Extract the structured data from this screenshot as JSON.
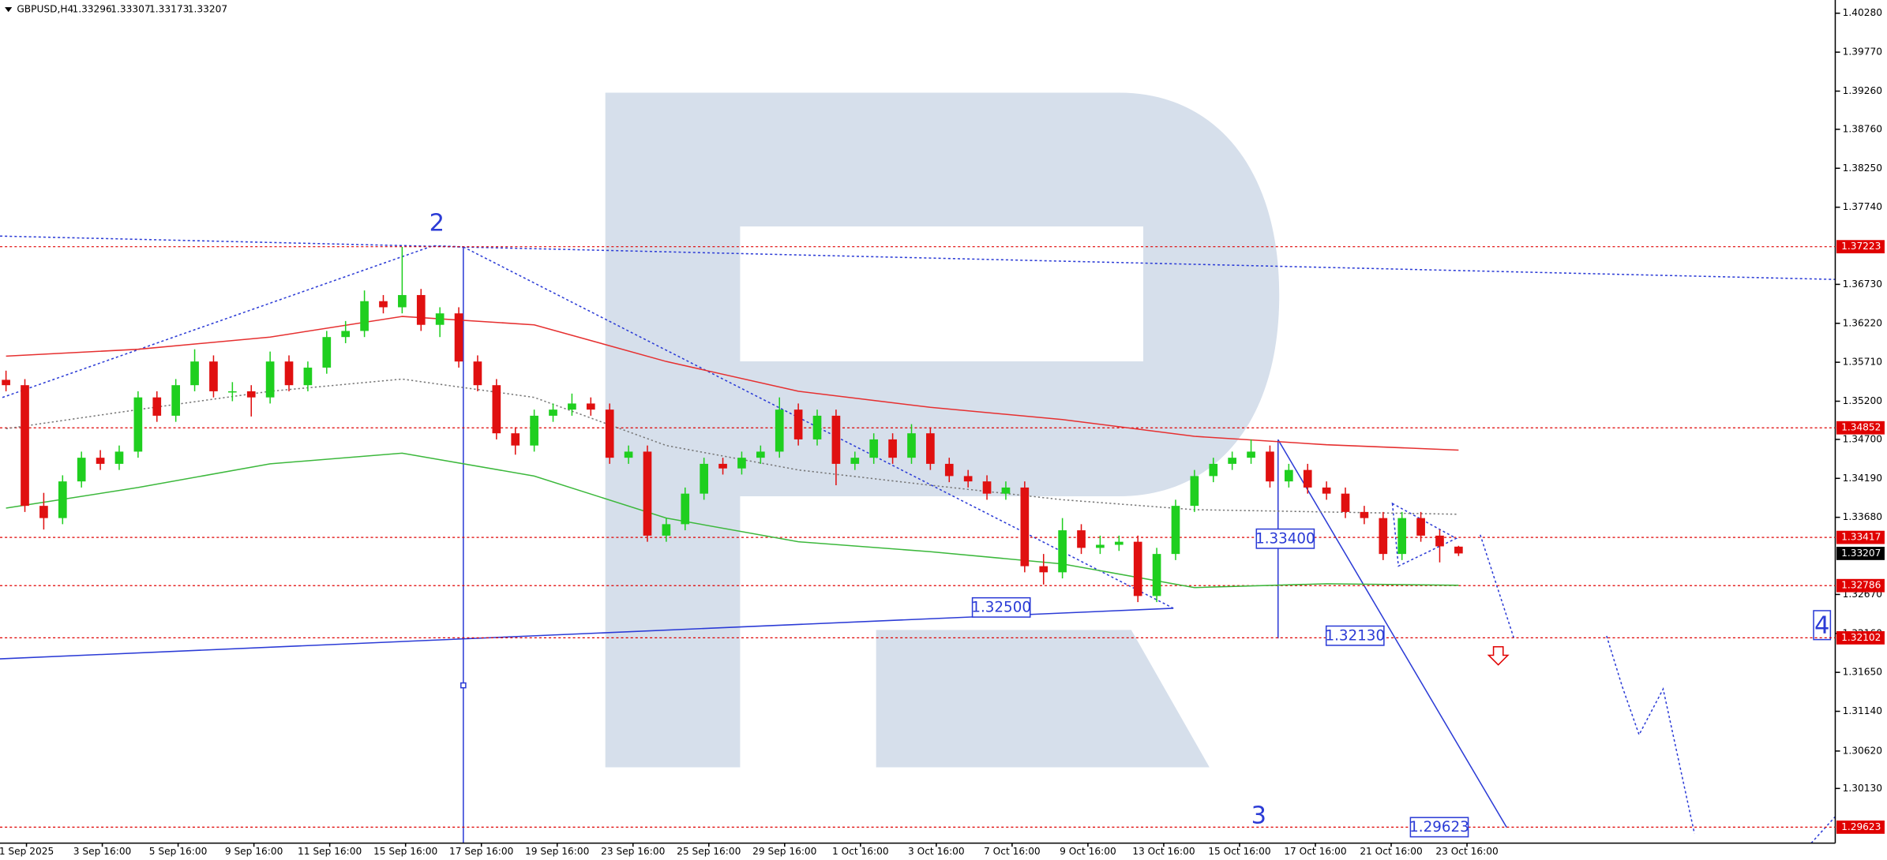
{
  "chart_data": {
    "type": "candlestick",
    "title": "GBPUSD,H4",
    "header_values": [
      1.33296,
      1.33307,
      1.33173,
      1.33207
    ],
    "categories": [
      "1 Sep 2025",
      "3 Sep 16:00",
      "5 Sep 16:00",
      "9 Sep 16:00",
      "11 Sep 16:00",
      "15 Sep 16:00",
      "17 Sep 16:00",
      "19 Sep 16:00",
      "23 Sep 16:00",
      "25 Sep 16:00",
      "29 Sep 16:00",
      "1 Oct 16:00",
      "3 Oct 16:00",
      "7 Oct 16:00",
      "9 Oct 16:00",
      "13 Oct 16:00",
      "15 Oct 16:00",
      "17 Oct 16:00",
      "21 Oct 16:00",
      "23 Oct 16:00"
    ],
    "candles": [
      [
        1.3548,
        1.356,
        1.3533,
        1.3541
      ],
      [
        1.3541,
        1.3549,
        1.3375,
        1.3383
      ],
      [
        1.3383,
        1.34,
        1.3352,
        1.3367
      ],
      [
        1.3367,
        1.3423,
        1.3359,
        1.3415
      ],
      [
        1.3415,
        1.3454,
        1.3407,
        1.3446
      ],
      [
        1.3446,
        1.3456,
        1.343,
        1.3438
      ],
      [
        1.3438,
        1.3462,
        1.343,
        1.3454
      ],
      [
        1.3454,
        1.3533,
        1.3446,
        1.3525
      ],
      [
        1.3525,
        1.3533,
        1.3493,
        1.3501
      ],
      [
        1.3501,
        1.3549,
        1.3493,
        1.3541
      ],
      [
        1.3541,
        1.3588,
        1.3533,
        1.3572
      ],
      [
        1.3572,
        1.358,
        1.3525,
        1.3533
      ],
      [
        1.3533,
        1.3545,
        1.352,
        1.3533
      ],
      [
        1.3533,
        1.3541,
        1.35,
        1.3525
      ],
      [
        1.3525,
        1.3585,
        1.3517,
        1.3572
      ],
      [
        1.3572,
        1.358,
        1.3533,
        1.3541
      ],
      [
        1.3541,
        1.3572,
        1.3533,
        1.3564
      ],
      [
        1.3564,
        1.3612,
        1.3556,
        1.3604
      ],
      [
        1.3604,
        1.3625,
        1.3596,
        1.3612
      ],
      [
        1.3612,
        1.3665,
        1.3604,
        1.3651
      ],
      [
        1.3651,
        1.3659,
        1.3635,
        1.3643
      ],
      [
        1.3643,
        1.3722,
        1.3635,
        1.3659
      ],
      [
        1.3659,
        1.3667,
        1.3612,
        1.362
      ],
      [
        1.362,
        1.3643,
        1.3604,
        1.3635
      ],
      [
        1.3635,
        1.3643,
        1.3564,
        1.3572
      ],
      [
        1.3572,
        1.358,
        1.3533,
        1.3541
      ],
      [
        1.3541,
        1.3549,
        1.347,
        1.3478
      ],
      [
        1.3478,
        1.3486,
        1.345,
        1.3462
      ],
      [
        1.3462,
        1.3509,
        1.3454,
        1.3501
      ],
      [
        1.3501,
        1.3517,
        1.3493,
        1.3509
      ],
      [
        1.3509,
        1.353,
        1.3501,
        1.3517
      ],
      [
        1.3517,
        1.3525,
        1.3501,
        1.3509
      ],
      [
        1.3509,
        1.3517,
        1.3438,
        1.3446
      ],
      [
        1.3446,
        1.3462,
        1.3438,
        1.3454
      ],
      [
        1.3454,
        1.3462,
        1.3336,
        1.3344
      ],
      [
        1.3344,
        1.3367,
        1.3336,
        1.3359
      ],
      [
        1.3359,
        1.3407,
        1.3351,
        1.3399
      ],
      [
        1.3399,
        1.3446,
        1.3391,
        1.3438
      ],
      [
        1.3438,
        1.3446,
        1.3424,
        1.3432
      ],
      [
        1.3432,
        1.3454,
        1.3424,
        1.3446
      ],
      [
        1.3446,
        1.3462,
        1.3438,
        1.3454
      ],
      [
        1.3454,
        1.3525,
        1.3446,
        1.3509
      ],
      [
        1.3509,
        1.3517,
        1.3462,
        1.347
      ],
      [
        1.347,
        1.3509,
        1.3462,
        1.3501
      ],
      [
        1.3501,
        1.3509,
        1.341,
        1.3438
      ],
      [
        1.3438,
        1.3454,
        1.343,
        1.3446
      ],
      [
        1.3446,
        1.3478,
        1.3438,
        1.347
      ],
      [
        1.347,
        1.3478,
        1.3438,
        1.3446
      ],
      [
        1.3446,
        1.349,
        1.3438,
        1.3478
      ],
      [
        1.3478,
        1.3486,
        1.343,
        1.3438
      ],
      [
        1.3438,
        1.3446,
        1.3414,
        1.3422
      ],
      [
        1.3422,
        1.343,
        1.3407,
        1.3415
      ],
      [
        1.3415,
        1.3423,
        1.3391,
        1.3399
      ],
      [
        1.3399,
        1.3415,
        1.3391,
        1.3407
      ],
      [
        1.3407,
        1.3415,
        1.3296,
        1.3304
      ],
      [
        1.3304,
        1.332,
        1.328,
        1.3296
      ],
      [
        1.3296,
        1.3367,
        1.3288,
        1.3351
      ],
      [
        1.3351,
        1.3359,
        1.332,
        1.3328
      ],
      [
        1.3328,
        1.3344,
        1.332,
        1.3332
      ],
      [
        1.3332,
        1.3344,
        1.3324,
        1.3336
      ],
      [
        1.3336,
        1.3344,
        1.3257,
        1.3265
      ],
      [
        1.3265,
        1.3328,
        1.3257,
        1.332
      ],
      [
        1.332,
        1.3391,
        1.3312,
        1.3383
      ],
      [
        1.3383,
        1.343,
        1.3375,
        1.3422
      ],
      [
        1.3422,
        1.3446,
        1.3414,
        1.3438
      ],
      [
        1.3438,
        1.3454,
        1.343,
        1.3446
      ],
      [
        1.3446,
        1.347,
        1.3438,
        1.3454
      ],
      [
        1.3454,
        1.3462,
        1.3407,
        1.3415
      ],
      [
        1.3415,
        1.3438,
        1.3407,
        1.343
      ],
      [
        1.343,
        1.3438,
        1.3399,
        1.3407
      ],
      [
        1.3407,
        1.3415,
        1.3391,
        1.3399
      ],
      [
        1.3399,
        1.3407,
        1.3367,
        1.3375
      ],
      [
        1.3375,
        1.3383,
        1.3359,
        1.3367
      ],
      [
        1.3367,
        1.3375,
        1.3312,
        1.332
      ],
      [
        1.332,
        1.3375,
        1.3312,
        1.3367
      ],
      [
        1.3367,
        1.3375,
        1.3336,
        1.3344
      ],
      [
        1.3344,
        1.3352,
        1.3309,
        1.333
      ],
      [
        1.33296,
        1.33307,
        1.33173,
        1.33207
      ]
    ],
    "up_color": "#1fcf1f",
    "down_color": "#e01010",
    "ylim": [
      1.29414,
      1.40453
    ],
    "yticks": [
      {
        "value": 1.4028,
        "label": "1.40280"
      },
      {
        "value": 1.3977,
        "label": "1.39770"
      },
      {
        "value": 1.3926,
        "label": "1.39260"
      },
      {
        "value": 1.3876,
        "label": "1.38760"
      },
      {
        "value": 1.3825,
        "label": "1.38250"
      },
      {
        "value": 1.3774,
        "label": "1.37740"
      },
      {
        "value": 1.3673,
        "label": "1.36730"
      },
      {
        "value": 1.3622,
        "label": "1.36220"
      },
      {
        "value": 1.3571,
        "label": "1.35710"
      },
      {
        "value": 1.352,
        "label": "1.35200"
      },
      {
        "value": 1.347,
        "label": "1.34700"
      },
      {
        "value": 1.3419,
        "label": "1.34190"
      },
      {
        "value": 1.3368,
        "label": "1.33680"
      },
      {
        "value": 1.3267,
        "label": "1.32670"
      },
      {
        "value": 1.3216,
        "label": "1.32160"
      },
      {
        "value": 1.3165,
        "label": "1.31650"
      },
      {
        "value": 1.3114,
        "label": "1.31140"
      },
      {
        "value": 1.3062,
        "label": "1.30620"
      },
      {
        "value": 1.3013,
        "label": "1.30130"
      }
    ],
    "ma_x": [
      0,
      7,
      14,
      21,
      28,
      35,
      42,
      49,
      56,
      63,
      70,
      77
    ],
    "moving_averages": [
      {
        "color": "#e63030",
        "dash": false,
        "values": [
          1.3579,
          1.3588,
          1.3604,
          1.3631,
          1.362,
          1.3572,
          1.3533,
          1.3512,
          1.3496,
          1.3474,
          1.3463,
          1.3456
        ]
      },
      {
        "color": "#777777",
        "dash": true,
        "values": [
          1.3484,
          1.3509,
          1.3533,
          1.3549,
          1.3525,
          1.3462,
          1.343,
          1.341,
          1.3391,
          1.3378,
          1.3375,
          1.3372
        ]
      },
      {
        "color": "#3cb83c",
        "dash": false,
        "values": [
          1.338,
          1.3407,
          1.3438,
          1.3452,
          1.3422,
          1.3367,
          1.3336,
          1.3323,
          1.3307,
          1.3276,
          1.3281,
          1.3279
        ]
      }
    ],
    "levels": [
      {
        "value": 1.37223,
        "color": "#e00000",
        "line": true
      },
      {
        "value": 1.34852,
        "color": "#e00000",
        "line": true
      },
      {
        "value": 1.33417,
        "color": "#e00000",
        "line": true
      },
      {
        "value": 1.33207,
        "color": "#000000",
        "line": false
      },
      {
        "value": 1.32786,
        "color": "#e00000",
        "line": true
      },
      {
        "value": 1.32102,
        "color": "#e00000",
        "line": true
      },
      {
        "value": 1.29623,
        "color": "#e00000",
        "line": true
      }
    ],
    "annotations": [
      {
        "value": 1.325,
        "label": "1.32500"
      },
      {
        "value": 1.334,
        "label": "1.33400"
      },
      {
        "value": 1.3213,
        "label": "1.32130"
      },
      {
        "value": 1.29623,
        "label": "1.29623"
      }
    ],
    "waves": [
      "2",
      "3",
      "4"
    ]
  }
}
